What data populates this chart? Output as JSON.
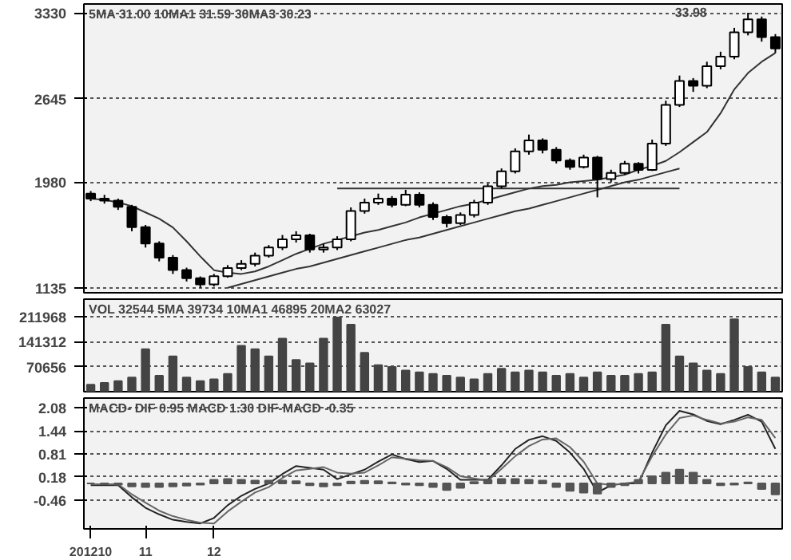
{
  "chart_data": [
    {
      "type": "candlestick",
      "categories": [
        "201210",
        null,
        null,
        null,
        "11",
        null,
        null,
        null,
        null,
        "12",
        null,
        null,
        null,
        null,
        null,
        null,
        null,
        null,
        null,
        null,
        null,
        null,
        null,
        null,
        null,
        null,
        null,
        null,
        null,
        null,
        null,
        null,
        null,
        null,
        null,
        null,
        null,
        null,
        null,
        null,
        null,
        null,
        null,
        null,
        null,
        null,
        null,
        null,
        null,
        null,
        null
      ],
      "ohlc": [
        [
          1890,
          1910,
          1830,
          1850
        ],
        [
          1850,
          1880,
          1810,
          1834
        ],
        [
          1834,
          1850,
          1760,
          1785
        ],
        [
          1785,
          1800,
          1590,
          1622
        ],
        [
          1622,
          1640,
          1460,
          1492
        ],
        [
          1492,
          1510,
          1350,
          1379
        ],
        [
          1379,
          1400,
          1250,
          1281
        ],
        [
          1281,
          1300,
          1190,
          1216
        ],
        [
          1216,
          1230,
          1140,
          1167
        ],
        [
          1167,
          1250,
          1150,
          1232
        ],
        [
          1232,
          1320,
          1220,
          1297
        ],
        [
          1297,
          1360,
          1280,
          1330
        ],
        [
          1330,
          1420,
          1310,
          1395
        ],
        [
          1395,
          1480,
          1380,
          1460
        ],
        [
          1460,
          1560,
          1440,
          1525
        ],
        [
          1525,
          1590,
          1500,
          1557
        ],
        [
          1557,
          1570,
          1420,
          1444
        ],
        [
          1444,
          1490,
          1420,
          1460
        ],
        [
          1460,
          1550,
          1440,
          1525
        ],
        [
          1525,
          1780,
          1510,
          1752
        ],
        [
          1752,
          1850,
          1730,
          1818
        ],
        [
          1818,
          1890,
          1800,
          1850
        ],
        [
          1850,
          1870,
          1780,
          1801
        ],
        [
          1801,
          1920,
          1790,
          1882
        ],
        [
          1882,
          1900,
          1780,
          1801
        ],
        [
          1801,
          1820,
          1680,
          1704
        ],
        [
          1704,
          1720,
          1620,
          1655
        ],
        [
          1655,
          1740,
          1640,
          1720
        ],
        [
          1720,
          1840,
          1700,
          1818
        ],
        [
          1818,
          1970,
          1800,
          1948
        ],
        [
          1948,
          2090,
          1930,
          2067
        ],
        [
          2067,
          2250,
          2050,
          2226
        ],
        [
          2226,
          2360,
          2200,
          2313
        ],
        [
          2313,
          2330,
          2210,
          2239
        ],
        [
          2239,
          2260,
          2130,
          2153
        ],
        [
          2153,
          2170,
          2080,
          2103
        ],
        [
          2103,
          2200,
          2090,
          2177
        ],
        [
          2177,
          2190,
          1860,
          2005
        ],
        [
          2005,
          2080,
          1980,
          2054
        ],
        [
          2054,
          2150,
          2040,
          2128
        ],
        [
          2128,
          2140,
          2050,
          2079
        ],
        [
          2079,
          2320,
          2070,
          2288
        ],
        [
          2288,
          2630,
          2270,
          2596
        ],
        [
          2596,
          2830,
          2580,
          2787
        ],
        [
          2787,
          2810,
          2700,
          2748
        ],
        [
          2748,
          2940,
          2730,
          2904
        ],
        [
          2904,
          3020,
          2880,
          2981
        ],
        [
          2981,
          3210,
          2960,
          3175
        ],
        [
          3175,
          3330,
          3150,
          3278
        ],
        [
          3278,
          3300,
          3100,
          3136
        ],
        [
          3136,
          3160,
          3010,
          3046
        ]
      ],
      "series": [
        {
          "type": "line",
          "color": "#333333",
          "values": [
            1850,
            1840,
            1820,
            1790,
            1740,
            1690,
            1620,
            1510,
            1390,
            1280,
            1260,
            1250,
            1270,
            1310,
            1360,
            1410,
            1450,
            1490,
            1520,
            1550,
            1580,
            1600,
            1630,
            1660,
            1700,
            1730,
            1760,
            1790,
            1810,
            1840,
            1870,
            1900,
            1930,
            1950,
            1960,
            1980,
            1990,
            2000,
            2020,
            2040,
            2080,
            2110,
            2150,
            2220,
            2300,
            2380,
            2530,
            2720,
            2850,
            2940,
            3010
          ]
        },
        {
          "type": "line",
          "color": "#333333",
          "values": [
            null,
            null,
            null,
            null,
            null,
            null,
            null,
            null,
            null,
            null,
            null,
            null,
            null,
            null,
            null,
            null,
            null,
            null,
            1930,
            1930,
            1930,
            1930,
            1930,
            1930,
            1930,
            1930,
            1930,
            1930,
            1930,
            1930,
            1930,
            1930,
            1930,
            1930,
            1930,
            1930,
            1930,
            1930,
            1930,
            1930,
            1930,
            1930,
            1930,
            1930,
            null,
            null,
            null,
            null,
            null,
            null,
            null
          ]
        },
        {
          "type": "line",
          "color": "#333333",
          "values": [
            null,
            null,
            null,
            null,
            null,
            null,
            null,
            null,
            null,
            null,
            1140,
            1170,
            1200,
            1230,
            1260,
            1290,
            1310,
            1340,
            1370,
            1400,
            1430,
            1460,
            1490,
            1520,
            1540,
            1570,
            1600,
            1630,
            1660,
            1690,
            1720,
            1750,
            1770,
            1800,
            1830,
            1860,
            1890,
            1920,
            1950,
            1980,
            2000,
            2030,
            2060,
            2090,
            null,
            null,
            null,
            null,
            null,
            null,
            null
          ]
        }
      ],
      "ylim": [
        1100,
        3400
      ],
      "yticks": [
        1135,
        1980,
        2645,
        3330
      ],
      "grid": "y",
      "tick_labels": "y",
      "annotations": [
        "5MA 31.00  10MA1 31.59  30MA3 30.23",
        "33.98"
      ]
    },
    {
      "type": "bar",
      "categories": [
        "201210",
        null,
        null,
        null,
        "11",
        null,
        null,
        null,
        null,
        "12",
        null,
        null,
        null,
        null,
        null,
        null,
        null,
        null,
        null,
        null,
        null,
        null,
        null,
        null,
        null,
        null,
        null,
        null,
        null,
        null,
        null,
        null,
        null,
        null,
        null,
        null,
        null,
        null,
        null,
        null,
        null,
        null,
        null,
        null,
        null,
        null,
        null,
        null,
        null,
        null,
        null
      ],
      "values": [
        20000,
        25000,
        30000,
        40000,
        120000,
        45000,
        100000,
        40000,
        30000,
        35000,
        50000,
        130000,
        120000,
        100000,
        150000,
        90000,
        80000,
        150000,
        210000,
        190000,
        110000,
        75000,
        70000,
        60000,
        55000,
        50000,
        45000,
        40000,
        35000,
        50000,
        65000,
        55000,
        60000,
        55000,
        45000,
        50000,
        40000,
        55000,
        45000,
        45000,
        50000,
        55000,
        190000,
        100000,
        80000,
        60000,
        50000,
        205000,
        70000,
        55000,
        40000
      ],
      "color": "#444444",
      "ylim": [
        0,
        262000
      ],
      "yticks": [
        70656,
        141312,
        211968
      ],
      "grid": "y",
      "tick_labels": "y",
      "annotations": [
        "VOL 32544  5MA 39734  10MA1 46895  20MA2 63027"
      ]
    },
    {
      "type": "line",
      "categories": [
        "201210",
        null,
        null,
        null,
        "11",
        null,
        null,
        null,
        null,
        "12",
        null,
        null,
        null,
        null,
        null,
        null,
        null,
        null,
        null,
        null,
        null,
        null,
        null,
        null,
        null,
        null,
        null,
        null,
        null,
        null,
        null,
        null,
        null,
        null,
        null,
        null,
        null,
        null,
        null,
        null,
        null,
        null,
        null,
        null,
        null,
        null,
        null,
        null,
        null,
        null,
        null
      ],
      "series": [
        {
          "type": "line",
          "color": "#222222",
          "values": [
            -0.05,
            -0.05,
            -0.05,
            -0.38,
            -0.67,
            -0.85,
            -1.0,
            -1.06,
            -1.1,
            -0.95,
            -0.6,
            -0.34,
            -0.15,
            0.0,
            0.26,
            0.48,
            0.43,
            0.38,
            0.12,
            0.25,
            0.38,
            0.6,
            0.8,
            0.67,
            0.59,
            0.62,
            0.4,
            0.1,
            0.1,
            0.1,
            0.5,
            0.95,
            1.2,
            1.3,
            1.17,
            0.85,
            0.4,
            -0.25,
            -0.05,
            0.0,
            0.0,
            0.85,
            1.6,
            2.0,
            1.9,
            1.72,
            1.63,
            1.75,
            1.89,
            1.7,
            0.95
          ]
        },
        {
          "type": "line",
          "color": "#666666",
          "values": [
            -0.02,
            -0.02,
            -0.02,
            -0.3,
            -0.53,
            -0.75,
            -0.9,
            -1.0,
            -1.08,
            -1.1,
            -0.77,
            -0.5,
            -0.25,
            -0.1,
            0.15,
            0.36,
            0.4,
            0.45,
            0.3,
            0.27,
            0.3,
            0.5,
            0.72,
            0.68,
            0.64,
            0.62,
            0.45,
            0.2,
            0.14,
            0.08,
            0.4,
            0.75,
            1.03,
            1.21,
            1.24,
            1.0,
            0.6,
            0.0,
            -0.04,
            0.0,
            0.05,
            0.75,
            1.35,
            1.8,
            1.87,
            1.75,
            1.65,
            1.7,
            1.82,
            1.75,
            1.25
          ]
        },
        {
          "type": "bar",
          "color": "#555555",
          "values": [
            0,
            -0.02,
            -0.03,
            -0.08,
            -0.1,
            -0.1,
            -0.08,
            -0.06,
            -0.03,
            0.1,
            0.12,
            0.1,
            0.08,
            0.08,
            0.08,
            0.06,
            -0.05,
            -0.08,
            -0.05,
            0.05,
            0.07,
            0.06,
            0.03,
            -0.03,
            -0.05,
            -0.1,
            -0.18,
            -0.12,
            0.04,
            0.1,
            0.12,
            0.12,
            0.1,
            0.08,
            -0.1,
            -0.2,
            -0.25,
            -0.28,
            -0.1,
            -0.05,
            0.1,
            0.2,
            0.3,
            0.38,
            0.3,
            0.1,
            -0.05,
            -0.03,
            0.03,
            -0.15,
            -0.3
          ]
        }
      ],
      "ylim": [
        -1.25,
        2.35
      ],
      "yticks": [
        -0.46,
        0.18,
        0.81,
        1.44,
        2.08
      ],
      "grid": "y",
      "annotations": [
        "MACD- DIF 0.95  MACD 1.30  DIF-MACD -0.35"
      ]
    }
  ]
}
